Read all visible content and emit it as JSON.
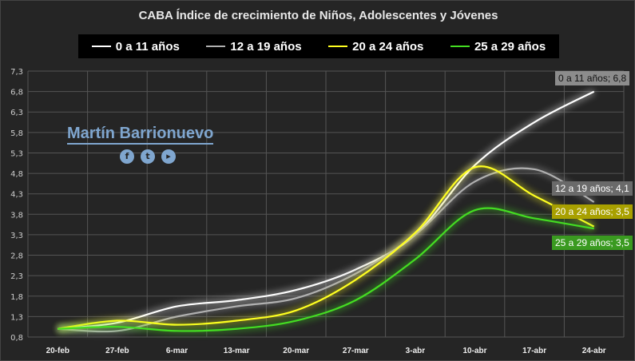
{
  "chart_data": {
    "type": "line",
    "title": "CABA Índice de crecimiento de Niños, Adolescentes y Jóvenes",
    "categories": [
      "20-feb",
      "27-feb",
      "6-mar",
      "13-mar",
      "20-mar",
      "27-mar",
      "3-abr",
      "10-abr",
      "17-abr",
      "24-abr"
    ],
    "yticks": [
      "0,8",
      "1,3",
      "1,8",
      "2,3",
      "2,8",
      "3,3",
      "3,8",
      "4,3",
      "4,8",
      "5,3",
      "5,8",
      "6,3",
      "6,8",
      "7,3"
    ],
    "ylim": [
      0.8,
      7.3
    ],
    "grid": true,
    "legend": "top",
    "series": [
      {
        "name": "0 a 11 años",
        "color": "#ffffff",
        "values": [
          1.0,
          1.15,
          1.55,
          1.7,
          1.95,
          2.45,
          3.3,
          5.0,
          6.05,
          6.8
        ],
        "label": "0 a 11 años; 6,8",
        "label_bg": "#8c8c8c",
        "label_color": "#111111"
      },
      {
        "name": "12 a 19 años",
        "color": "#b0b0b0",
        "values": [
          1.0,
          0.95,
          1.3,
          1.55,
          1.75,
          2.35,
          3.3,
          4.6,
          4.9,
          4.1
        ],
        "label": "12 a 19 años; 4,1",
        "label_bg": "#6a6a6a",
        "label_color": "#ffffff"
      },
      {
        "name": "20 a 24 años",
        "color": "#ffff20",
        "values": [
          1.0,
          1.2,
          1.1,
          1.2,
          1.45,
          2.2,
          3.35,
          4.95,
          4.25,
          3.5
        ],
        "label": "20 a 24 años; 3,5",
        "label_bg": "#a8a000",
        "label_color": "#ffffff"
      },
      {
        "name": "25 a 29 años",
        "color": "#44dd22",
        "values": [
          1.0,
          1.05,
          0.95,
          1.0,
          1.2,
          1.7,
          2.7,
          3.9,
          3.7,
          3.45
        ],
        "label": "25 a 29 años; 3,5",
        "label_bg": "#3a9a20",
        "label_color": "#ffffff"
      }
    ]
  },
  "watermark": {
    "name": "Martín Barrionuevo",
    "icons": [
      "facebook-icon",
      "twitter-icon",
      "youtube-icon"
    ]
  }
}
